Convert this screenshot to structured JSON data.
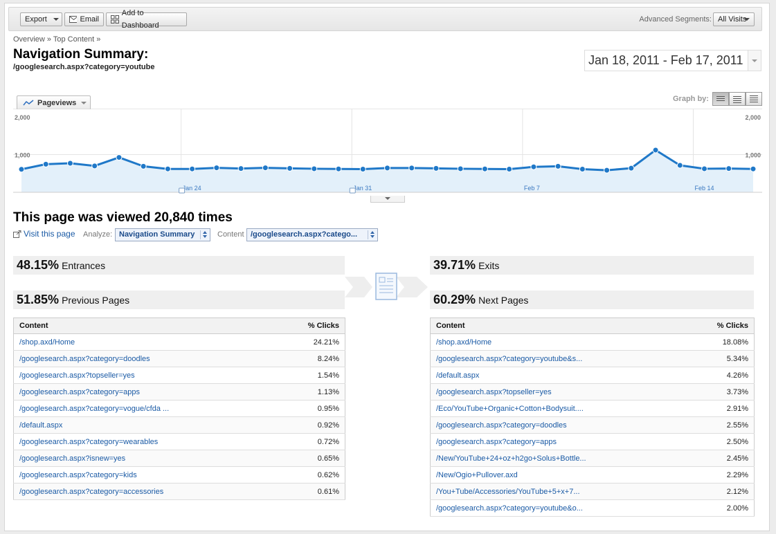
{
  "toolbar": {
    "export_label": "Export",
    "email_label": "Email",
    "dashboard_label": "Add to Dashboard",
    "segments_label": "Advanced Segments:",
    "segments_value": "All Visits"
  },
  "breadcrumb": [
    "Overview",
    "Top Content"
  ],
  "page": {
    "title": "Navigation Summary:",
    "subtitle": "/googlesearch.aspx?category=youtube",
    "date_range": "Jan 18, 2011 - Feb 17, 2011"
  },
  "graph": {
    "tab_label": "Pageviews",
    "graph_by_label": "Graph by:"
  },
  "chart_data": {
    "type": "area",
    "series": [
      {
        "name": "Pageviews",
        "values": [
          610,
          745,
          770,
          700,
          925,
          690,
          620,
          620,
          650,
          630,
          650,
          635,
          625,
          620,
          615,
          645,
          645,
          635,
          625,
          620,
          615,
          675,
          690,
          615,
          585,
          640,
          1120,
          715,
          625,
          630,
          620
        ]
      }
    ],
    "x_tick_labels": [
      "Jan 24",
      "Jan 31",
      "Feb 7",
      "Feb 14"
    ],
    "y_tick_labels": [
      "1,000",
      "2,000"
    ],
    "ylim": [
      0,
      2000
    ],
    "color": "#1f78c8",
    "fill": "#e3f0fa",
    "grid": true
  },
  "summary": {
    "views_heading": "This page was viewed 20,840 times",
    "visit_link": "Visit this page",
    "analyze_label": "Analyze:",
    "analyze_value": "Navigation Summary",
    "content_label": "Content",
    "content_value": "/googlesearch.aspx?catego..."
  },
  "metrics": {
    "entrances": {
      "pct": "48.15%",
      "label": "Entrances"
    },
    "previous": {
      "pct": "51.85%",
      "label": "Previous Pages"
    },
    "exits": {
      "pct": "39.71%",
      "label": "Exits"
    },
    "next": {
      "pct": "60.29%",
      "label": "Next Pages"
    }
  },
  "previous_table": {
    "headers": [
      "Content",
      "% Clicks"
    ],
    "rows": [
      [
        "/shop.axd/Home",
        "24.21%"
      ],
      [
        "/googlesearch.aspx?category=doodles",
        "8.24%"
      ],
      [
        "/googlesearch.aspx?topseller=yes",
        "1.54%"
      ],
      [
        "/googlesearch.aspx?category=apps",
        "1.13%"
      ],
      [
        "/googlesearch.aspx?category=vogue/cfda ...",
        "0.95%"
      ],
      [
        "/default.aspx",
        "0.92%"
      ],
      [
        "/googlesearch.aspx?category=wearables",
        "0.72%"
      ],
      [
        "/googlesearch.aspx?isnew=yes",
        "0.65%"
      ],
      [
        "/googlesearch.aspx?category=kids",
        "0.62%"
      ],
      [
        "/googlesearch.aspx?category=accessories",
        "0.61%"
      ]
    ]
  },
  "next_table": {
    "headers": [
      "Content",
      "% Clicks"
    ],
    "rows": [
      [
        "/shop.axd/Home",
        "18.08%"
      ],
      [
        "/googlesearch.aspx?category=youtube&s...",
        "5.34%"
      ],
      [
        "/default.aspx",
        "4.26%"
      ],
      [
        "/googlesearch.aspx?topseller=yes",
        "3.73%"
      ],
      [
        "/Eco/YouTube+Organic+Cotton+Bodysuit....",
        "2.91%"
      ],
      [
        "/googlesearch.aspx?category=doodles",
        "2.55%"
      ],
      [
        "/googlesearch.aspx?category=apps",
        "2.50%"
      ],
      [
        "/New/YouTube+24+oz+h2go+Solus+Bottle...",
        "2.45%"
      ],
      [
        "/New/Ogio+Pullover.axd",
        "2.29%"
      ],
      [
        "/You+Tube/Accessories/YouTube+5+x+7...",
        "2.12%"
      ],
      [
        "/googlesearch.aspx?category=youtube&o...",
        "2.00%"
      ]
    ]
  }
}
